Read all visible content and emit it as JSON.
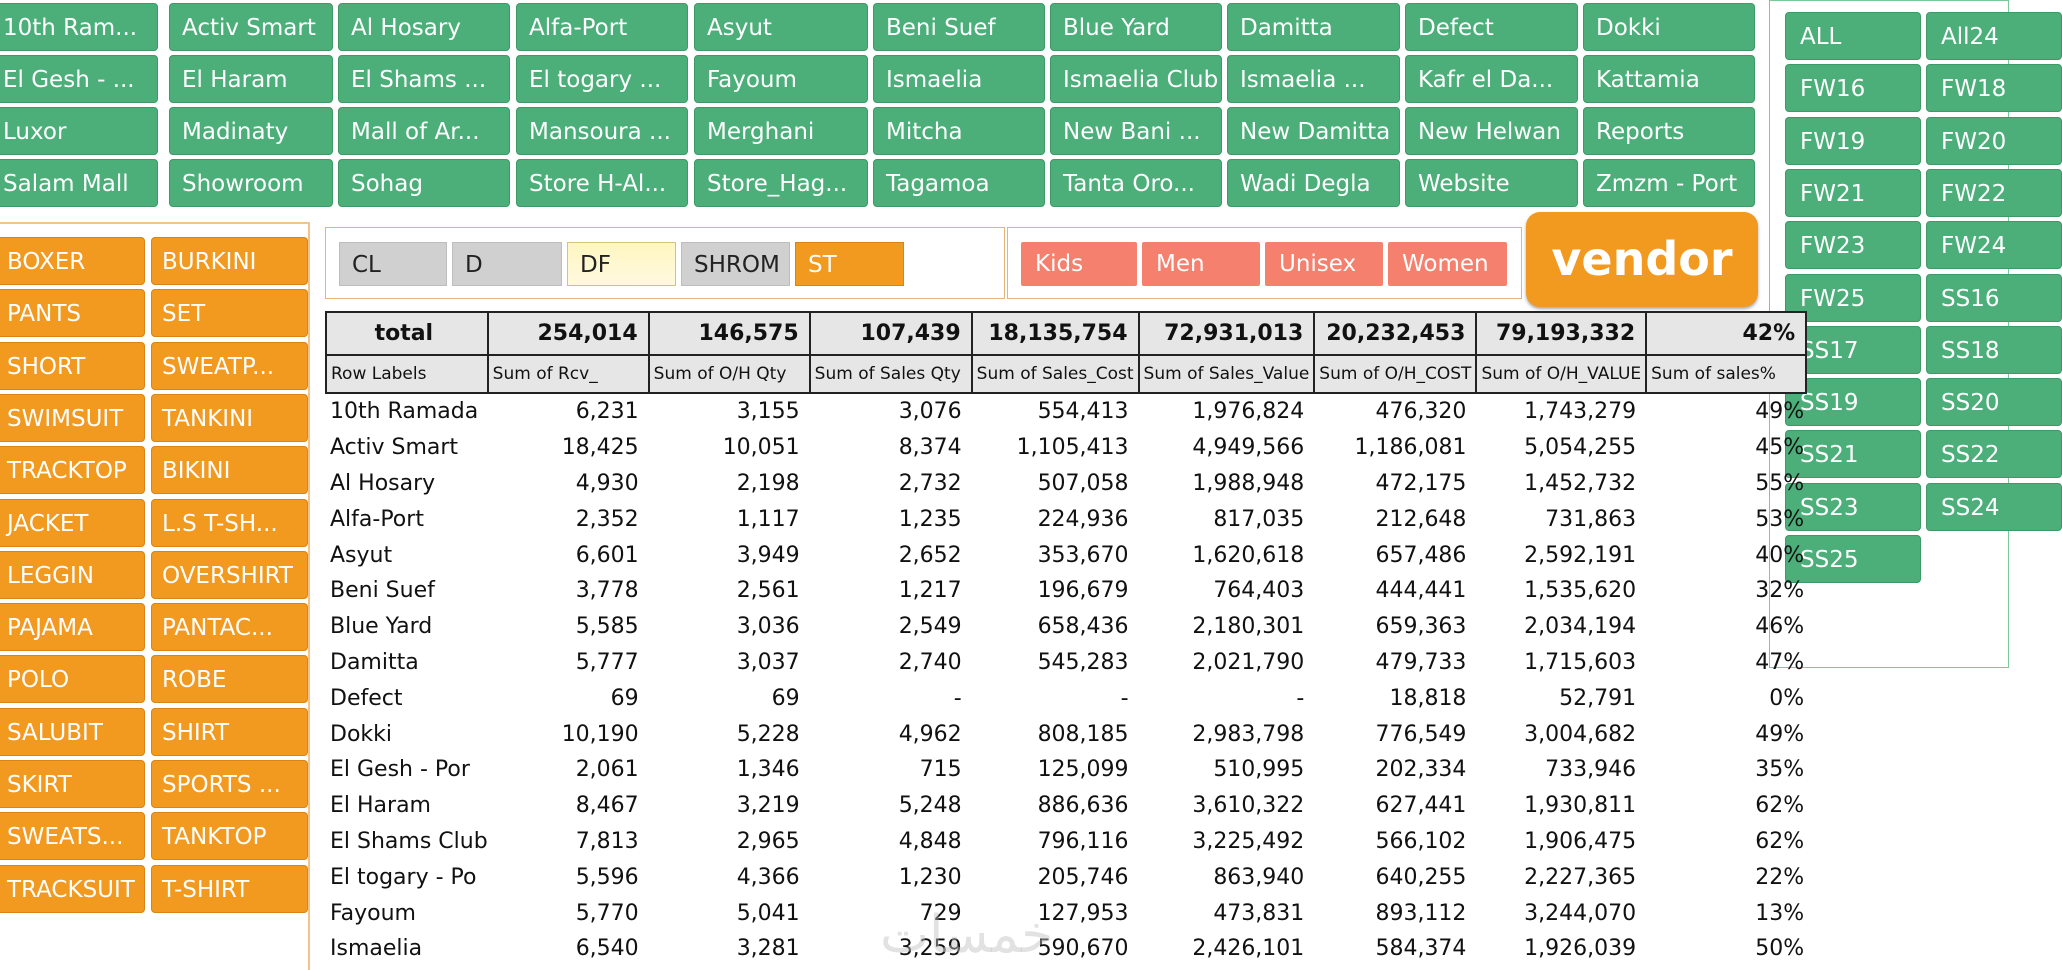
{
  "stores": [
    [
      "10th Ram...",
      "Activ Smart",
      "Al Hosary",
      "Alfa-Port",
      "Asyut",
      "Beni Suef",
      "Blue Yard",
      "Damitta",
      "Defect",
      "Dokki"
    ],
    [
      "El Gesh - ...",
      "El Haram",
      "El Shams ...",
      "El togary ...",
      "Fayoum",
      "Ismaelia",
      "Ismaelia Club",
      "Ismaelia ...",
      "Kafr el Da...",
      "Kattamia"
    ],
    [
      "Luxor",
      "Madinaty",
      "Mall of Ar...",
      "Mansoura ...",
      "Merghani",
      "Mitcha",
      "New Bani ...",
      "New Damitta",
      "New Helwan",
      "Reports"
    ],
    [
      "Salam Mall",
      "Showroom",
      "Sohag",
      "Store H-Al...",
      "Store_Hag...",
      "Tagamoa",
      "Tanta Oro...",
      "Wadi Degla",
      "Website",
      "Zmzm - Port"
    ]
  ],
  "categories": [
    [
      "BOXER",
      "BURKINI"
    ],
    [
      "PANTS",
      "SET"
    ],
    [
      "SHORT",
      "SWEATP..."
    ],
    [
      "SWIMSUIT",
      "TANKINI"
    ],
    [
      "TRACKTOP",
      "BIKINI"
    ],
    [
      "JACKET",
      "L.S T-SH..."
    ],
    [
      "LEGGIN",
      "OVERSHIRT"
    ],
    [
      "PAJAMA",
      "PANTAC..."
    ],
    [
      "POLO",
      "ROBE"
    ],
    [
      "SALUBIT",
      "SHIRT"
    ],
    [
      "SKIRT",
      "SPORTS ..."
    ],
    [
      "SWEATS...",
      "TANKTOP"
    ],
    [
      "TRACKSUIT",
      "T-SHIRT"
    ]
  ],
  "seasons": [
    [
      "ALL",
      "All24"
    ],
    [
      "FW16",
      "FW18"
    ],
    [
      "FW19",
      "FW20"
    ],
    [
      "FW21",
      "FW22"
    ],
    [
      "FW23",
      "FW24"
    ],
    [
      "FW25",
      "SS16"
    ],
    [
      "SS17",
      "SS18"
    ],
    [
      "SS19",
      "SS20"
    ],
    [
      "SS21",
      "SS22"
    ],
    [
      "SS23",
      "SS24"
    ],
    [
      "SS25",
      ""
    ]
  ],
  "channels": [
    "CL",
    "D",
    "DF",
    "SHROM",
    "ST"
  ],
  "genders": [
    "Kids",
    "Men",
    "Unisex",
    "Women"
  ],
  "vendor_label": "vendor",
  "colors": {
    "store_green": "#4caf7a",
    "category_orange": "#f2991f",
    "gender_salmon": "#f5806e",
    "header_gray": "#e6e6e6"
  },
  "pivot": {
    "totals": [
      "total",
      "254,014",
      "146,575",
      "107,439",
      "18,135,754",
      "72,931,013",
      "20,232,453",
      "79,193,332",
      "42%"
    ],
    "headers": [
      "Row Labels",
      "Sum of Rcv_",
      "Sum of O/H Qty",
      "Sum of Sales Qty",
      "Sum of Sales_Cost",
      "Sum of Sales_Value",
      "Sum of O/H_COST",
      "Sum of O/H_VALUE",
      "Sum of sales%"
    ],
    "rows": [
      [
        "10th Ramada",
        "6,231",
        "3,155",
        "3,076",
        "554,413",
        "1,976,824",
        "476,320",
        "1,743,279",
        "49%"
      ],
      [
        "Activ Smart",
        "18,425",
        "10,051",
        "8,374",
        "1,105,413",
        "4,949,566",
        "1,186,081",
        "5,054,255",
        "45%"
      ],
      [
        "Al Hosary",
        "4,930",
        "2,198",
        "2,732",
        "507,058",
        "1,988,948",
        "472,175",
        "1,452,732",
        "55%"
      ],
      [
        "Alfa-Port",
        "2,352",
        "1,117",
        "1,235",
        "224,936",
        "817,035",
        "212,648",
        "731,863",
        "53%"
      ],
      [
        "Asyut",
        "6,601",
        "3,949",
        "2,652",
        "353,670",
        "1,620,618",
        "657,486",
        "2,592,191",
        "40%"
      ],
      [
        "Beni Suef",
        "3,778",
        "2,561",
        "1,217",
        "196,679",
        "764,403",
        "444,441",
        "1,535,620",
        "32%"
      ],
      [
        "Blue Yard",
        "5,585",
        "3,036",
        "2,549",
        "658,436",
        "2,180,301",
        "659,363",
        "2,034,194",
        "46%"
      ],
      [
        "Damitta",
        "5,777",
        "3,037",
        "2,740",
        "545,283",
        "2,021,790",
        "479,733",
        "1,715,603",
        "47%"
      ],
      [
        "Defect",
        "69",
        "69",
        "-",
        "-",
        "-",
        "18,818",
        "52,791",
        "0%"
      ],
      [
        "Dokki",
        "10,190",
        "5,228",
        "4,962",
        "808,185",
        "2,983,798",
        "776,549",
        "3,004,682",
        "49%"
      ],
      [
        "El Gesh - Por",
        "2,061",
        "1,346",
        "715",
        "125,099",
        "510,995",
        "202,334",
        "733,946",
        "35%"
      ],
      [
        "El Haram",
        "8,467",
        "3,219",
        "5,248",
        "886,636",
        "3,610,322",
        "627,441",
        "1,930,811",
        "62%"
      ],
      [
        "El Shams Club",
        "7,813",
        "2,965",
        "4,848",
        "796,116",
        "3,225,492",
        "566,102",
        "1,906,475",
        "62%"
      ],
      [
        "El togary - Po",
        "5,596",
        "4,366",
        "1,230",
        "205,746",
        "863,940",
        "640,255",
        "2,227,365",
        "22%"
      ],
      [
        "Fayoum",
        "5,770",
        "5,041",
        "729",
        "127,953",
        "473,831",
        "893,112",
        "3,244,070",
        "13%"
      ],
      [
        "Ismaelia",
        "6,540",
        "3,281",
        "3,259",
        "590,670",
        "2,426,101",
        "584,374",
        "1,926,039",
        "50%"
      ]
    ]
  }
}
